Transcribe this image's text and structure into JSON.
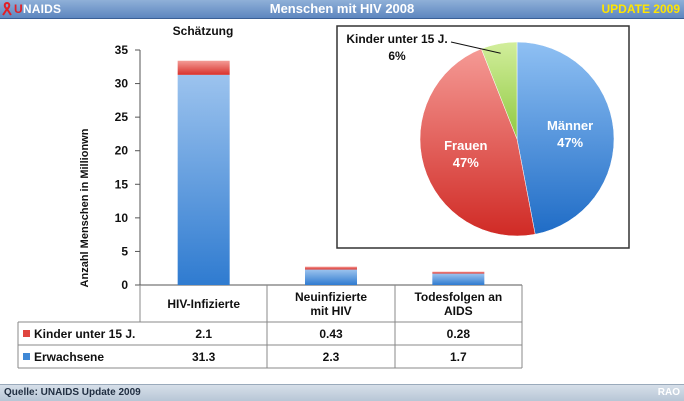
{
  "header": {
    "logo_prefix": "U",
    "logo_rest": "NAIDS",
    "title": "Menschen mit HIV 2008",
    "update": "UPDATE 2009"
  },
  "footer": {
    "source": "Quelle: UNAIDS Update 2009",
    "credit": "RAO"
  },
  "colors": {
    "header": "#6e93c9",
    "children": "#e0453f",
    "adults": "#3f88d6",
    "women": "#e84a44",
    "men": "#3b86d4",
    "kids_slice": "#b3de6b",
    "update_text": "#ffe500"
  },
  "chart_data": [
    {
      "type": "bar",
      "stacked": true,
      "annotation": "Schätzung",
      "ylabel": "Anzahl Menschen in Millionwn",
      "ylim": [
        0,
        35
      ],
      "yticks": [
        0,
        5,
        10,
        15,
        20,
        25,
        30,
        35
      ],
      "categories": [
        "HIV-Infizierte",
        "Neuinfizierte mit HIV",
        "Todesfolgen an AIDS"
      ],
      "series": [
        {
          "name": "Erwachsene",
          "values": [
            31.3,
            2.3,
            1.7
          ],
          "color": "#3f88d6"
        },
        {
          "name": "Kinder unter 15 J.",
          "values": [
            2.1,
            0.43,
            0.28
          ],
          "color": "#e0453f"
        }
      ],
      "table": {
        "headers": [
          "HIV-Infizierte",
          "Neuinfizierte mit HIV",
          "Todesfolgen an AIDS"
        ],
        "rows": [
          {
            "label": "Kinder unter 15 J.",
            "values": [
              "2.1",
              "0.43",
              "0.28"
            ]
          },
          {
            "label": "Erwachsene",
            "values": [
              "31.3",
              "2.3",
              "1.7"
            ]
          }
        ]
      }
    },
    {
      "type": "pie",
      "slices": [
        {
          "label": "Männer",
          "value": 47,
          "display": "47%",
          "color": "#3b86d4"
        },
        {
          "label": "Frauen",
          "value": 47,
          "display": "47%",
          "color": "#e84a44"
        },
        {
          "label": "Kinder unter 15 J.",
          "value": 6,
          "display": "6%",
          "color": "#b3de6b"
        }
      ]
    }
  ]
}
